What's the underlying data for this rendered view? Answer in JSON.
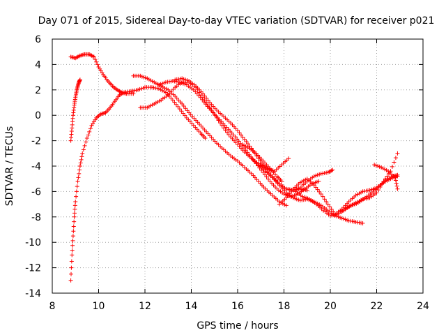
{
  "chart_data": {
    "type": "scatter",
    "title": "Day 071 of 2015, Sidereal Day-to-day VTEC variation (SDTVAR) for receiver p021",
    "xlabel": "GPS time / hours",
    "ylabel": "SDTVAR / TECUs",
    "xlim": [
      8,
      24
    ],
    "ylim": [
      -14,
      6
    ],
    "xticks": [
      8,
      10,
      12,
      14,
      16,
      18,
      20,
      22,
      24
    ],
    "yticks": [
      -14,
      -12,
      -10,
      -8,
      -6,
      -4,
      -2,
      0,
      2,
      4,
      6
    ],
    "grid": true,
    "marker": "+",
    "color": "#ff0000",
    "series": [
      {
        "name": "track-1",
        "x": [
          8.8,
          9.0,
          9.2,
          9.4,
          9.6,
          9.8,
          10.0,
          10.2,
          10.4,
          10.6,
          10.8,
          11.0,
          11.2,
          11.5
        ],
        "y": [
          4.6,
          4.5,
          4.7,
          4.8,
          4.8,
          4.6,
          3.8,
          3.2,
          2.7,
          2.3,
          2.0,
          1.8,
          1.7,
          1.7
        ]
      },
      {
        "name": "track-2",
        "x": [
          8.8,
          8.85,
          8.9,
          8.95,
          9.0,
          9.05,
          9.1,
          9.15,
          9.2
        ],
        "y": [
          -2.0,
          -1.0,
          0.0,
          0.8,
          1.4,
          1.9,
          2.3,
          2.6,
          2.8
        ]
      },
      {
        "name": "track-3",
        "x": [
          8.8,
          8.85,
          8.9,
          8.95,
          9.0,
          9.1,
          9.2,
          9.3,
          9.5,
          9.7,
          9.9,
          10.1,
          10.3,
          10.5,
          10.7,
          10.9,
          11.1,
          11.4,
          11.7,
          12.0,
          12.3,
          12.6,
          12.9,
          13.2,
          13.5,
          13.8,
          14.1,
          14.4,
          14.6
        ],
        "y": [
          -13.0,
          -11.0,
          -9.5,
          -8.0,
          -6.8,
          -5.2,
          -4.0,
          -3.0,
          -1.8,
          -0.8,
          -0.2,
          0.1,
          0.2,
          0.6,
          1.1,
          1.6,
          1.8,
          1.9,
          2.0,
          2.2,
          2.2,
          2.1,
          1.8,
          1.2,
          0.5,
          -0.2,
          -0.8,
          -1.4,
          -1.8
        ]
      },
      {
        "name": "track-4",
        "x": [
          11.5,
          11.8,
          12.1,
          12.4,
          12.7,
          13.0,
          13.3,
          13.6,
          13.9,
          14.2,
          14.5,
          14.8,
          15.1,
          15.4,
          15.7,
          16.0,
          16.3,
          16.6,
          16.9,
          17.2,
          17.5,
          17.8,
          18.1
        ],
        "y": [
          3.1,
          3.1,
          2.9,
          2.6,
          2.3,
          2.0,
          1.5,
          0.9,
          0.2,
          -0.4,
          -1.0,
          -1.6,
          -2.2,
          -2.7,
          -3.2,
          -3.6,
          -4.1,
          -4.6,
          -5.2,
          -5.8,
          -6.3,
          -6.8,
          -7.1
        ]
      },
      {
        "name": "track-5",
        "x": [
          11.8,
          12.1,
          12.4,
          12.7,
          13.0,
          13.3,
          13.6,
          13.9,
          14.2,
          14.5,
          14.8,
          15.1,
          15.4,
          15.7,
          16.0,
          16.3,
          16.6,
          16.9,
          17.2,
          17.5,
          17.8,
          18.1,
          18.4,
          18.7,
          19.0
        ],
        "y": [
          0.6,
          0.6,
          0.9,
          1.2,
          1.6,
          2.2,
          2.6,
          2.6,
          2.2,
          1.4,
          0.6,
          -0.2,
          -1.0,
          -1.7,
          -2.3,
          -2.9,
          -3.4,
          -3.9,
          -4.4,
          -4.9,
          -5.4,
          -5.8,
          -5.9,
          -5.8,
          -5.9
        ]
      },
      {
        "name": "track-6",
        "x": [
          12.6,
          12.9,
          13.2,
          13.5,
          13.8,
          14.1,
          14.4,
          14.7,
          15.0,
          15.3,
          15.6,
          15.9,
          16.2,
          16.5,
          16.8,
          17.1,
          17.4,
          17.7,
          18.0,
          18.3,
          18.6,
          18.9,
          19.2,
          19.5
        ],
        "y": [
          2.4,
          2.6,
          2.7,
          2.6,
          2.4,
          2.0,
          1.4,
          0.7,
          0.1,
          -0.5,
          -1.1,
          -1.7,
          -2.4,
          -3.1,
          -3.8,
          -4.5,
          -5.2,
          -5.8,
          -6.2,
          -6.4,
          -6.2,
          -5.8,
          -5.4,
          -5.2
        ]
      },
      {
        "name": "track-7",
        "x": [
          13.3,
          13.6,
          13.9,
          14.2,
          14.5,
          14.8,
          15.1,
          15.4,
          15.7,
          16.0,
          16.3,
          16.6,
          16.9,
          17.2,
          17.5,
          17.8,
          18.1,
          18.4,
          18.7,
          19.0,
          19.3,
          19.6,
          19.9,
          20.1
        ],
        "y": [
          2.8,
          2.9,
          2.7,
          2.3,
          1.7,
          1.0,
          0.4,
          -0.1,
          -0.6,
          -1.2,
          -1.9,
          -2.6,
          -3.4,
          -4.1,
          -4.8,
          -5.4,
          -5.8,
          -5.9,
          -5.7,
          -5.2,
          -4.8,
          -4.6,
          -4.5,
          -4.3
        ]
      },
      {
        "name": "track-8",
        "x": [
          16.2,
          16.5,
          16.8,
          17.1,
          17.4,
          17.7,
          17.9
        ],
        "y": [
          -2.3,
          -2.6,
          -3.0,
          -3.6,
          -4.2,
          -4.8,
          -5.2
        ]
      },
      {
        "name": "track-9",
        "x": [
          16.6,
          16.9,
          17.2,
          17.5,
          17.8,
          18.1,
          18.4,
          18.7,
          19.0,
          19.3,
          19.6,
          19.9,
          20.2,
          20.5,
          20.8,
          21.1,
          21.4
        ],
        "y": [
          -3.4,
          -3.8,
          -4.3,
          -4.9,
          -5.5,
          -6.1,
          -6.5,
          -6.7,
          -6.6,
          -6.8,
          -7.1,
          -7.5,
          -7.9,
          -8.1,
          -8.3,
          -8.4,
          -8.5
        ]
      },
      {
        "name": "track-10",
        "x": [
          17.0,
          17.3,
          17.6,
          17.9,
          18.2
        ],
        "y": [
          -3.9,
          -4.2,
          -4.4,
          -3.9,
          -3.4
        ]
      },
      {
        "name": "track-11",
        "x": [
          17.8,
          18.1,
          18.4,
          18.7,
          19.0,
          19.3,
          19.6,
          19.9,
          20.2,
          20.5,
          20.8,
          21.1,
          21.4,
          21.7,
          22.0,
          22.3,
          22.6,
          22.9
        ],
        "y": [
          -7.0,
          -6.5,
          -5.8,
          -5.3,
          -5.0,
          -5.5,
          -6.2,
          -7.0,
          -7.8,
          -7.4,
          -6.8,
          -6.3,
          -6.0,
          -5.9,
          -5.7,
          -5.3,
          -5.0,
          -4.8
        ]
      },
      {
        "name": "track-12",
        "x": [
          18.5,
          18.8,
          19.1,
          19.4,
          19.7,
          20.0,
          20.3,
          20.6,
          20.9,
          21.2,
          21.5,
          21.8,
          22.1,
          22.4,
          22.7,
          22.9
        ],
        "y": [
          -6.0,
          -6.4,
          -6.6,
          -7.0,
          -7.5,
          -7.9,
          -7.8,
          -7.4,
          -7.1,
          -6.9,
          -6.5,
          -6.1,
          -5.6,
          -5.1,
          -4.8,
          -4.7
        ]
      },
      {
        "name": "track-13",
        "x": [
          20.5,
          20.8,
          21.1,
          21.4,
          21.7,
          22.0,
          22.3,
          22.6,
          22.9
        ],
        "y": [
          -7.6,
          -7.2,
          -6.9,
          -6.6,
          -6.5,
          -6.1,
          -5.2,
          -4.4,
          -3.0
        ]
      },
      {
        "name": "track-14",
        "x": [
          21.9,
          22.2,
          22.5,
          22.8,
          22.9
        ],
        "y": [
          -3.9,
          -4.1,
          -4.4,
          -4.9,
          -5.8
        ]
      }
    ]
  }
}
